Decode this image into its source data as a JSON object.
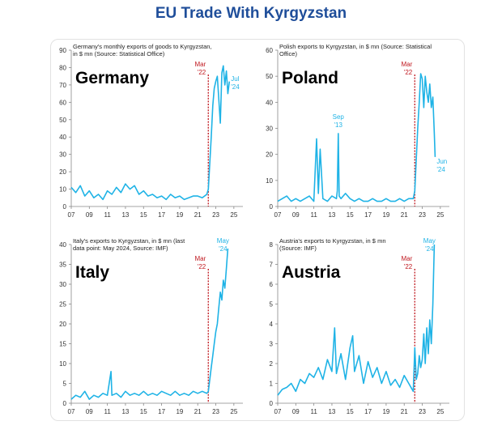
{
  "page": {
    "title": "EU Trade With Kyrgyzstan"
  },
  "colors": {
    "series": "#1fb3e6",
    "marker": "#c0181f",
    "axis": "#888888"
  },
  "chart_data": [
    {
      "type": "line",
      "panel_label": "Germany",
      "title": "Germany's monthly exports of goods to Kyrgyzstan, in $ mn (Source: Statistical Office)",
      "title_lines": [
        "Germany's monthly exports of goods to Kyrgyzstan,",
        "in $ mn (Source: Statistical Office)"
      ],
      "ylim": [
        0,
        90
      ],
      "yticks": [
        0,
        10,
        20,
        30,
        40,
        50,
        60,
        70,
        80,
        90
      ],
      "xlim": [
        2007,
        2026
      ],
      "xtick_labels": [
        "07",
        "09",
        "11",
        "13",
        "15",
        "17",
        "19",
        "21",
        "23",
        "25"
      ],
      "marker": {
        "x": 2022.17,
        "label_lines": [
          "Mar",
          "'22"
        ]
      },
      "end_label": {
        "x": 2024.5,
        "y": 70,
        "label_lines": [
          "Jul",
          "'24"
        ]
      },
      "x": [
        2007.0,
        2007.5,
        2008.0,
        2008.5,
        2009.0,
        2009.5,
        2010.0,
        2010.5,
        2011.0,
        2011.5,
        2012.0,
        2012.5,
        2013.0,
        2013.5,
        2014.0,
        2014.5,
        2015.0,
        2015.5,
        2016.0,
        2016.5,
        2017.0,
        2017.5,
        2018.0,
        2018.5,
        2019.0,
        2019.5,
        2020.0,
        2020.5,
        2021.0,
        2021.5,
        2022.0,
        2022.17,
        2022.33,
        2022.5,
        2022.67,
        2022.83,
        2023.0,
        2023.17,
        2023.33,
        2023.5,
        2023.67,
        2023.83,
        2024.0,
        2024.17,
        2024.33,
        2024.5
      ],
      "y": [
        11,
        8,
        12,
        6,
        9,
        5,
        7,
        4,
        9,
        7,
        11,
        8,
        13,
        10,
        12,
        7,
        9,
        6,
        7,
        5,
        6,
        4,
        7,
        5,
        6,
        4,
        5,
        6,
        6,
        5,
        7,
        10,
        25,
        40,
        58,
        68,
        72,
        75,
        62,
        48,
        77,
        81,
        70,
        78,
        65,
        72
      ]
    },
    {
      "type": "line",
      "panel_label": "Poland",
      "title": "Polish exports to Kyrgyzstan, in $ mn (Source: Statistical Office)",
      "title_lines": [
        "Polish exports to Kyrgyzstan, in $ mn (Source: Statistical",
        "Office)"
      ],
      "ylim": [
        0,
        60
      ],
      "yticks": [
        0,
        10,
        20,
        30,
        40,
        50,
        60
      ],
      "xlim": [
        2007,
        2026
      ],
      "xtick_labels": [
        "07",
        "09",
        "11",
        "13",
        "15",
        "17",
        "19",
        "21",
        "23",
        "25"
      ],
      "marker": {
        "x": 2022.17,
        "label_lines": [
          "Mar",
          "'22"
        ]
      },
      "spike_label": {
        "x": 2013.7,
        "y": 28,
        "label_lines": [
          "Sep",
          "'13"
        ]
      },
      "end_label": {
        "x": 2024.42,
        "y": 19,
        "label_lines": [
          "Jun",
          "'24"
        ]
      },
      "x": [
        2007.0,
        2007.5,
        2008.0,
        2008.5,
        2009.0,
        2009.5,
        2010.0,
        2010.5,
        2011.0,
        2011.3,
        2011.5,
        2011.7,
        2012.0,
        2012.5,
        2013.0,
        2013.5,
        2013.6,
        2013.7,
        2013.8,
        2014.0,
        2014.5,
        2015.0,
        2015.5,
        2016.0,
        2016.5,
        2017.0,
        2017.5,
        2018.0,
        2018.5,
        2019.0,
        2019.5,
        2020.0,
        2020.5,
        2021.0,
        2021.5,
        2022.0,
        2022.17,
        2022.33,
        2022.5,
        2022.67,
        2022.83,
        2023.0,
        2023.17,
        2023.33,
        2023.5,
        2023.67,
        2023.83,
        2024.0,
        2024.17,
        2024.33,
        2024.42
      ],
      "y": [
        2,
        3,
        4,
        2,
        3,
        2,
        3,
        4,
        2,
        26,
        5,
        22,
        3,
        2,
        4,
        3,
        6,
        28,
        4,
        3,
        5,
        3,
        2,
        3,
        2,
        2,
        3,
        2,
        2,
        3,
        2,
        2,
        3,
        2,
        3,
        3,
        6,
        18,
        30,
        40,
        51,
        49,
        38,
        50,
        44,
        40,
        47,
        38,
        42,
        28,
        19
      ]
    },
    {
      "type": "line",
      "panel_label": "Italy",
      "title": "Italy's exports to Kyrgyzstan, in $ mn (last data point: May 2024, Source: IMF)",
      "title_lines": [
        "Italy's exports to Kyrgyzstan, in $ mn (last",
        "data point: May 2024, Source: IMF)"
      ],
      "ylim": [
        0,
        40
      ],
      "yticks": [
        0,
        5,
        10,
        15,
        20,
        25,
        30,
        35,
        40
      ],
      "xlim": [
        2007,
        2026
      ],
      "xtick_labels": [
        "07",
        "09",
        "11",
        "13",
        "15",
        "17",
        "19",
        "21",
        "23",
        "25"
      ],
      "marker": {
        "x": 2022.17,
        "label_lines": [
          "Mar",
          "'22"
        ]
      },
      "end_label": {
        "x": 2024.33,
        "y": 39,
        "label_lines": [
          "May",
          "'24"
        ]
      },
      "x": [
        2007.0,
        2007.5,
        2008.0,
        2008.5,
        2009.0,
        2009.5,
        2010.0,
        2010.5,
        2011.0,
        2011.4,
        2011.5,
        2012.0,
        2012.5,
        2013.0,
        2013.5,
        2014.0,
        2014.5,
        2015.0,
        2015.5,
        2016.0,
        2016.5,
        2017.0,
        2017.5,
        2018.0,
        2018.5,
        2019.0,
        2019.5,
        2020.0,
        2020.5,
        2021.0,
        2021.5,
        2022.0,
        2022.17,
        2022.33,
        2022.5,
        2022.67,
        2022.83,
        2023.0,
        2023.17,
        2023.33,
        2023.5,
        2023.67,
        2023.83,
        2024.0,
        2024.17,
        2024.33
      ],
      "y": [
        1,
        2,
        1.5,
        3,
        1,
        2,
        1.5,
        2.5,
        2,
        8,
        2,
        2.5,
        1.5,
        3,
        2,
        2.5,
        2,
        3,
        2,
        2.5,
        2,
        3,
        2.5,
        2,
        3,
        2,
        2.5,
        2,
        3,
        2.5,
        3,
        2.5,
        3,
        6,
        9,
        12,
        15,
        18,
        20,
        24,
        28,
        26,
        31,
        29,
        34,
        39
      ]
    },
    {
      "type": "line",
      "panel_label": "Austria",
      "title": "Austria's exports to Kyrgyzstan, in $ mn (Source: IMF)",
      "title_lines": [
        "Austria's exports to Kyrgyzstan, in $ mn",
        "(Source: IMF)"
      ],
      "ylim": [
        0,
        8
      ],
      "yticks": [
        0,
        1,
        2,
        3,
        4,
        5,
        6,
        7,
        8
      ],
      "xlim": [
        2007,
        2026
      ],
      "xtick_labels": [
        "07",
        "09",
        "11",
        "13",
        "15",
        "17",
        "19",
        "21",
        "23",
        "25"
      ],
      "marker": {
        "x": 2022.17,
        "label_lines": [
          "Mar",
          "'22"
        ]
      },
      "end_label": {
        "x": 2024.33,
        "y": 8,
        "label_lines": [
          "May",
          "'24"
        ]
      },
      "x": [
        2007.0,
        2007.5,
        2008.0,
        2008.5,
        2009.0,
        2009.5,
        2010.0,
        2010.5,
        2011.0,
        2011.5,
        2012.0,
        2012.5,
        2013.0,
        2013.3,
        2013.5,
        2014.0,
        2014.5,
        2015.0,
        2015.3,
        2015.5,
        2016.0,
        2016.5,
        2017.0,
        2017.5,
        2018.0,
        2018.5,
        2019.0,
        2019.5,
        2020.0,
        2020.5,
        2021.0,
        2021.5,
        2022.0,
        2022.17,
        2022.33,
        2022.5,
        2022.67,
        2022.83,
        2023.0,
        2023.17,
        2023.33,
        2023.5,
        2023.67,
        2023.83,
        2024.0,
        2024.17,
        2024.33
      ],
      "y": [
        0.4,
        0.7,
        0.8,
        1.0,
        0.6,
        1.2,
        1.0,
        1.5,
        1.3,
        1.8,
        1.2,
        2.2,
        1.6,
        3.8,
        1.5,
        2.5,
        1.2,
        2.8,
        3.4,
        1.6,
        2.4,
        1.0,
        2.1,
        1.3,
        1.8,
        1.0,
        1.6,
        0.9,
        1.2,
        0.8,
        1.4,
        1.0,
        0.6,
        2.8,
        1.2,
        1.5,
        2.4,
        1.8,
        2.2,
        3.5,
        2.0,
        3.8,
        2.5,
        4.2,
        3.0,
        5.0,
        8.0
      ]
    }
  ]
}
